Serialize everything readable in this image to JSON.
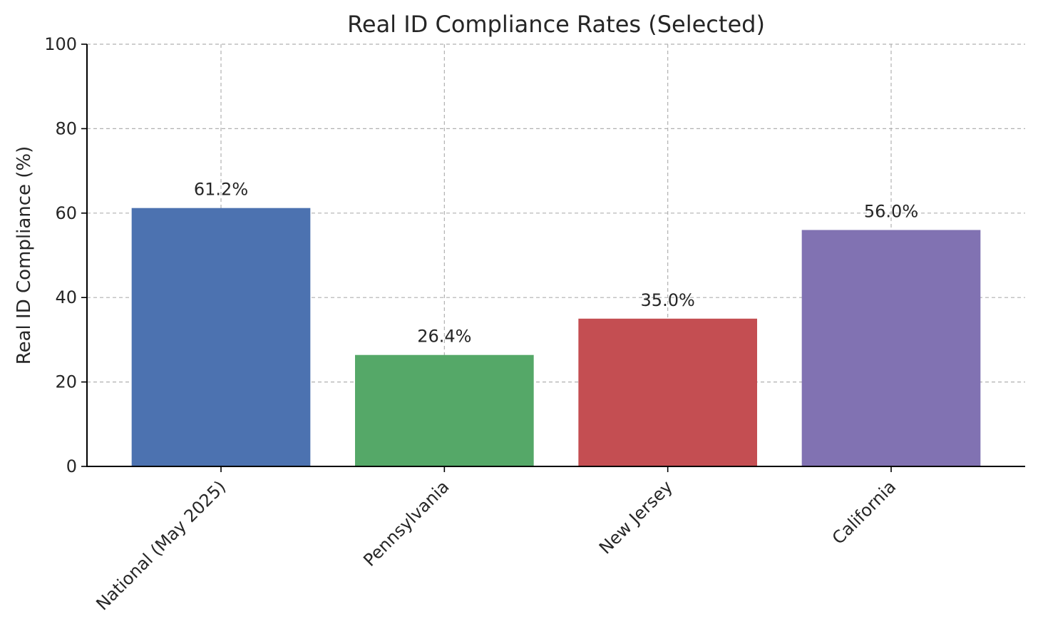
{
  "chart_data": {
    "type": "bar",
    "title": "Real ID Compliance Rates (Selected)",
    "xlabel": "",
    "ylabel": "Real ID Compliance (%)",
    "categories": [
      "National (May 2025)",
      "Pennsylvania",
      "New Jersey",
      "California"
    ],
    "values": [
      61.2,
      26.4,
      35.0,
      56.0
    ],
    "data_labels": [
      "61.2%",
      "26.4%",
      "35.0%",
      "56.0%"
    ],
    "colors": [
      "#4c72b0",
      "#55a868",
      "#c44e52",
      "#8172b2"
    ],
    "ylim": [
      0,
      100
    ],
    "yticks": [
      0,
      20,
      40,
      60,
      80,
      100
    ],
    "grid": true,
    "legend": "none"
  }
}
